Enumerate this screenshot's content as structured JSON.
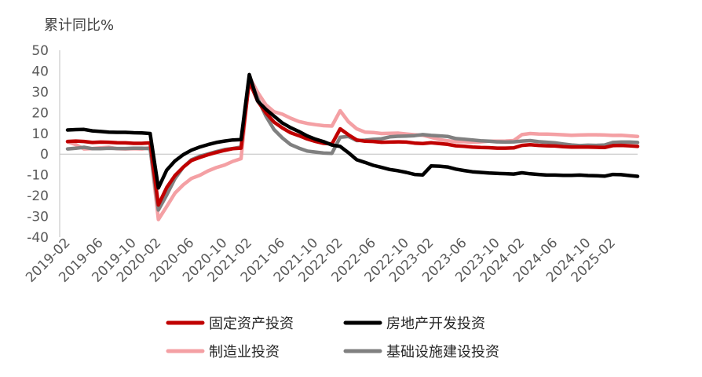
{
  "chart_data": {
    "type": "line",
    "title": "",
    "ylabel": "累计同比%",
    "xlabel": "",
    "ylim": [
      -40,
      50
    ],
    "yticks": [
      -40,
      -30,
      -20,
      -10,
      0,
      10,
      20,
      30,
      40,
      50
    ],
    "xtick_labels": [
      "2019-02",
      "2019-06",
      "2019-10",
      "2020-02",
      "2020-06",
      "2020-10",
      "2021-02",
      "2021-06",
      "2021-10",
      "2022-02",
      "2022-06",
      "2022-10",
      "2023-02",
      "2023-06",
      "2023-10",
      "2024-02",
      "2024-06",
      "2024-10",
      "2025-02"
    ],
    "x": [
      "2019-02",
      "2019-03",
      "2019-04",
      "2019-05",
      "2019-06",
      "2019-07",
      "2019-08",
      "2019-09",
      "2019-10",
      "2019-11",
      "2019-12",
      "2020-02",
      "2020-03",
      "2020-04",
      "2020-05",
      "2020-06",
      "2020-07",
      "2020-08",
      "2020-09",
      "2020-10",
      "2020-11",
      "2020-12",
      "2021-02",
      "2021-03",
      "2021-04",
      "2021-05",
      "2021-06",
      "2021-07",
      "2021-08",
      "2021-09",
      "2021-10",
      "2021-11",
      "2021-12",
      "2022-02",
      "2022-03",
      "2022-04",
      "2022-05",
      "2022-06",
      "2022-07",
      "2022-08",
      "2022-09",
      "2022-10",
      "2022-11",
      "2022-12",
      "2023-02",
      "2023-03",
      "2023-04",
      "2023-05",
      "2023-06",
      "2023-07",
      "2023-08",
      "2023-09",
      "2023-10",
      "2023-11",
      "2023-12",
      "2024-02",
      "2024-03",
      "2024-04",
      "2024-05",
      "2024-06",
      "2024-07",
      "2024-08",
      "2024-09",
      "2024-10",
      "2024-11",
      "2024-12",
      "2025-02",
      "2025-03",
      "2025-04",
      "2025-05"
    ],
    "series": [
      {
        "name": "固定资产投资",
        "color": "#c00000",
        "width": 4.5,
        "values": [
          6.1,
          6.3,
          6.1,
          5.6,
          5.8,
          5.7,
          5.5,
          5.4,
          5.2,
          5.2,
          5.4,
          -24.5,
          -16.1,
          -10.3,
          -6.3,
          -3.1,
          -1.6,
          -0.3,
          0.8,
          1.8,
          2.6,
          2.9,
          35.0,
          25.6,
          19.9,
          15.4,
          12.6,
          10.3,
          8.9,
          7.3,
          6.1,
          5.2,
          4.9,
          12.2,
          9.3,
          6.8,
          6.2,
          6.1,
          5.7,
          5.8,
          5.9,
          5.8,
          5.3,
          5.1,
          5.5,
          5.1,
          4.7,
          4.0,
          3.8,
          3.4,
          3.2,
          3.1,
          2.9,
          2.9,
          3.0,
          4.2,
          4.5,
          4.2,
          4.0,
          3.9,
          3.6,
          3.4,
          3.4,
          3.4,
          3.3,
          3.2,
          4.1,
          4.2,
          4.0,
          3.7
        ]
      },
      {
        "name": "房地产开发投资",
        "color": "#000000",
        "width": 4.5,
        "values": [
          11.6,
          11.8,
          11.9,
          11.2,
          10.9,
          10.6,
          10.5,
          10.5,
          10.3,
          10.2,
          9.9,
          -16.3,
          -7.7,
          -3.3,
          -0.3,
          1.9,
          3.4,
          4.6,
          5.6,
          6.3,
          6.8,
          7.0,
          38.3,
          25.6,
          21.6,
          18.3,
          15.0,
          12.7,
          10.9,
          8.8,
          7.2,
          6.0,
          4.4,
          3.7,
          0.7,
          -2.7,
          -4.0,
          -5.4,
          -6.4,
          -7.4,
          -8.0,
          -8.8,
          -9.8,
          -10.0,
          -5.7,
          -5.8,
          -6.2,
          -7.2,
          -7.9,
          -8.5,
          -8.8,
          -9.1,
          -9.3,
          -9.4,
          -9.6,
          -9.0,
          -9.5,
          -9.8,
          -10.1,
          -10.1,
          -10.2,
          -10.2,
          -10.1,
          -10.3,
          -10.4,
          -10.6,
          -9.8,
          -9.9,
          -10.3,
          -10.7
        ]
      },
      {
        "name": "制造业投资",
        "color": "#f4a0a4",
        "width": 4.5,
        "values": [
          5.9,
          4.6,
          2.5,
          2.7,
          3.0,
          3.3,
          2.6,
          2.5,
          2.6,
          2.5,
          3.1,
          -31.5,
          -25.2,
          -18.8,
          -14.8,
          -11.7,
          -10.2,
          -8.1,
          -6.5,
          -5.3,
          -3.5,
          -2.2,
          37.3,
          29.8,
          23.8,
          20.4,
          19.2,
          17.3,
          15.7,
          14.8,
          14.2,
          13.7,
          13.5,
          20.9,
          15.6,
          12.2,
          10.6,
          10.4,
          9.9,
          10.0,
          10.1,
          9.7,
          9.3,
          9.1,
          8.1,
          7.0,
          6.4,
          6.0,
          6.0,
          5.7,
          5.9,
          6.2,
          6.2,
          6.3,
          6.5,
          9.4,
          9.9,
          9.7,
          9.6,
          9.5,
          9.3,
          9.1,
          9.2,
          9.3,
          9.3,
          9.2,
          9.0,
          9.1,
          8.8,
          8.5
        ]
      },
      {
        "name": "基础设施建设投资",
        "color": "#808080",
        "width": 4.5,
        "values": [
          2.5,
          2.8,
          3.3,
          2.6,
          2.6,
          2.8,
          2.7,
          2.7,
          2.8,
          2.8,
          2.6,
          -26.9,
          -19.7,
          -11.8,
          -6.3,
          -2.7,
          -1.0,
          0.1,
          1.2,
          2.2,
          2.7,
          3.4,
          36.6,
          26.9,
          18.4,
          11.8,
          7.8,
          4.6,
          2.9,
          1.5,
          1.0,
          0.5,
          0.4,
          8.1,
          8.5,
          6.5,
          6.7,
          7.1,
          7.4,
          8.3,
          8.6,
          8.7,
          8.9,
          9.4,
          9.0,
          8.8,
          8.5,
          7.5,
          7.2,
          6.8,
          6.4,
          6.2,
          5.9,
          5.8,
          5.9,
          6.3,
          6.5,
          6.0,
          5.7,
          5.4,
          4.9,
          4.4,
          4.1,
          4.3,
          4.2,
          4.4,
          5.6,
          5.8,
          5.8,
          5.6
        ],
        "_note_unused": null
      }
    ],
    "legend": [
      {
        "name": "固定资产投资",
        "color": "#c00000"
      },
      {
        "name": "房地产开发投资",
        "color": "#000000"
      },
      {
        "name": "制造业投资",
        "color": "#f4a0a4"
      },
      {
        "name": "基础设施建设投资",
        "color": "#808080"
      }
    ],
    "legend_position": "bottom",
    "grid": false
  }
}
